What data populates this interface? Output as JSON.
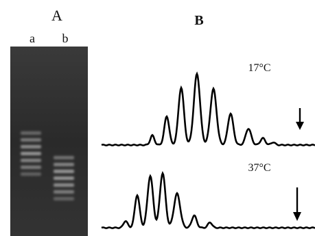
{
  "panel_a": {
    "label": "A",
    "lanes": [
      "a",
      "b"
    ]
  },
  "panel_b": {
    "label": "B",
    "traces": [
      {
        "label": "17°C"
      },
      {
        "label": "37°C"
      }
    ]
  }
}
